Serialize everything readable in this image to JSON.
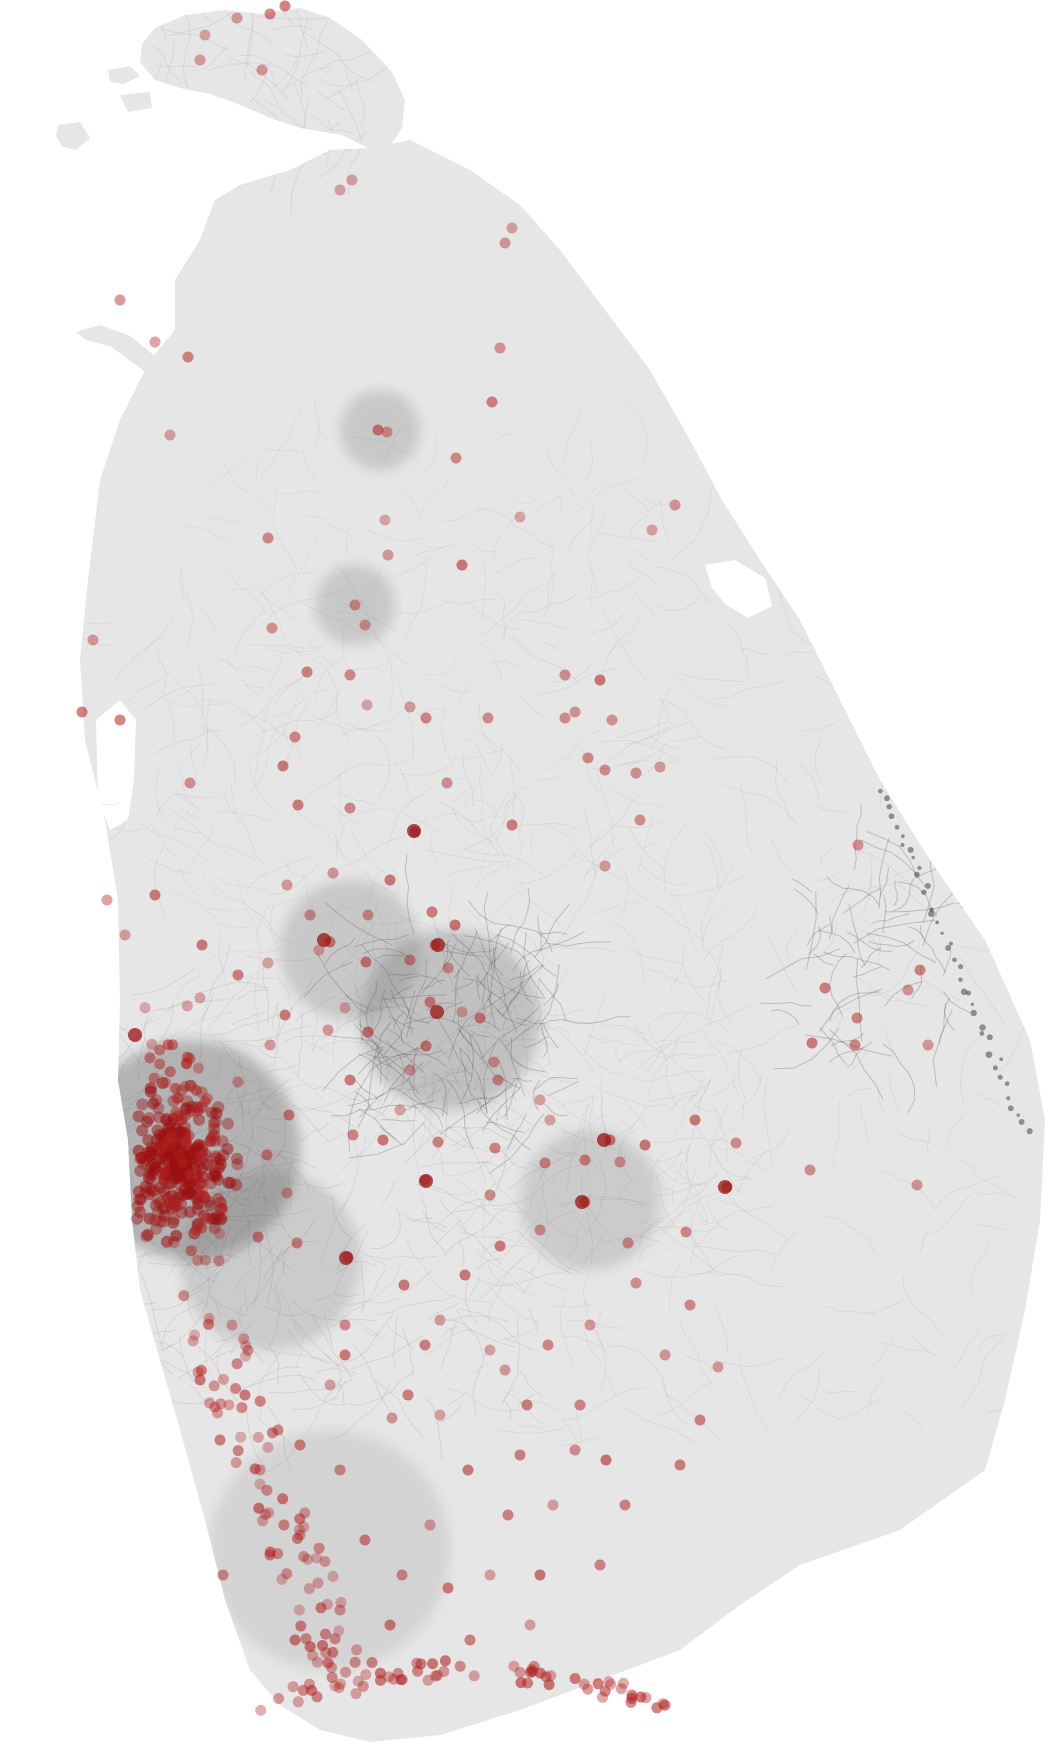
{
  "map": {
    "region": "Sri Lanka",
    "colors": {
      "background": "#ffffff",
      "land": "#e6e6e6",
      "network": "#9e9e9e",
      "network_dark": "#555555",
      "marker": "#b22222",
      "marker_dense": "#9c1010"
    }
  }
}
